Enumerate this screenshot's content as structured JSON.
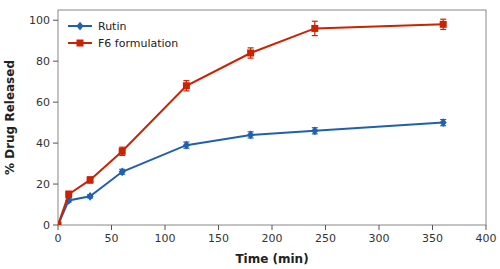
{
  "chart_data": {
    "type": "line",
    "x": [
      0,
      10,
      30,
      60,
      120,
      180,
      240,
      360
    ],
    "series": [
      {
        "name": "Rutin",
        "color": "#2060b0",
        "marker": "diamond",
        "values": [
          0,
          12,
          14,
          26,
          39,
          44,
          46,
          50
        ],
        "errors": [
          0,
          0.8,
          0.8,
          1.2,
          1.5,
          1.5,
          1.5,
          1.5
        ]
      },
      {
        "name": "F6 formulation",
        "color": "#cc2200",
        "marker": "square",
        "values": [
          0,
          15,
          22,
          36,
          68,
          84,
          96,
          98
        ],
        "errors": [
          0,
          1.5,
          1.5,
          2.0,
          2.5,
          2.5,
          3.5,
          2.5
        ]
      }
    ],
    "xlabel": "Time (min)",
    "ylabel": "% Drug Released",
    "xlim": [
      0,
      400
    ],
    "ylim": [
      0,
      105
    ],
    "xticks": [
      0,
      50,
      100,
      150,
      200,
      250,
      300,
      350,
      400
    ],
    "yticks": [
      0,
      20,
      40,
      60,
      80,
      100
    ],
    "grid": false,
    "legend": "upper left"
  }
}
